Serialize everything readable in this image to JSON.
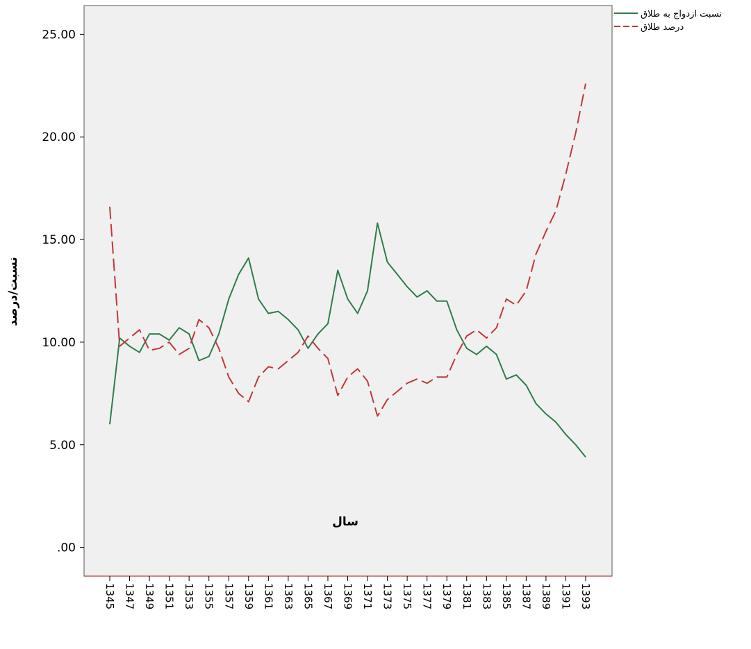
{
  "chart_data": {
    "type": "line",
    "title": "",
    "xlabel": "سال",
    "ylabel": "نسبت/درصد",
    "ylim": [
      -1.4,
      26.4
    ],
    "yticks": [
      0,
      5,
      10,
      15,
      20,
      25
    ],
    "ytick_labels": [
      ".00",
      "5.00",
      "10.00",
      "15.00",
      "20.00",
      "25.00"
    ],
    "x": [
      1345,
      1346,
      1347,
      1348,
      1349,
      1350,
      1351,
      1352,
      1353,
      1354,
      1355,
      1356,
      1357,
      1358,
      1359,
      1360,
      1361,
      1362,
      1363,
      1364,
      1365,
      1366,
      1367,
      1368,
      1369,
      1370,
      1371,
      1372,
      1373,
      1374,
      1375,
      1376,
      1377,
      1378,
      1379,
      1380,
      1381,
      1382,
      1383,
      1384,
      1385,
      1386,
      1387,
      1388,
      1389,
      1390,
      1391,
      1392,
      1393
    ],
    "xtick_labels": [
      "1345",
      "1347",
      "1349",
      "1351",
      "1353",
      "1355",
      "1357",
      "1359",
      "1361",
      "1363",
      "1365",
      "1367",
      "1369",
      "1371",
      "1373",
      "1375",
      "1377",
      "1379",
      "1381",
      "1383",
      "1385",
      "1387",
      "1389",
      "1391",
      "1393"
    ],
    "legend_position": "top-right, outside plot",
    "grid": false,
    "series": [
      {
        "name": "نسبت ازدواج به طلاق",
        "color": "#2e7d4a",
        "style": "solid",
        "values": [
          6.0,
          10.2,
          9.8,
          9.5,
          10.4,
          10.4,
          10.1,
          10.7,
          10.4,
          9.1,
          9.3,
          10.4,
          12.1,
          13.3,
          14.1,
          12.1,
          11.4,
          11.5,
          11.1,
          10.6,
          9.7,
          10.4,
          10.9,
          13.5,
          12.1,
          11.4,
          12.5,
          15.8,
          13.9,
          13.3,
          12.7,
          12.2,
          12.5,
          12.0,
          12.0,
          10.6,
          9.7,
          9.4,
          9.8,
          9.4,
          8.2,
          8.4,
          7.9,
          7.0,
          6.5,
          6.1,
          5.5,
          5.0,
          4.4
        ]
      },
      {
        "name": "درصد طلاق",
        "color": "#c0393b",
        "style": "dashed",
        "values": [
          16.6,
          9.8,
          10.2,
          10.6,
          9.6,
          9.7,
          10.0,
          9.4,
          9.7,
          11.1,
          10.7,
          9.7,
          8.3,
          7.5,
          7.1,
          8.3,
          8.8,
          8.7,
          9.1,
          9.5,
          10.3,
          9.7,
          9.2,
          7.4,
          8.3,
          8.7,
          8.1,
          6.4,
          7.2,
          7.6,
          8.0,
          8.2,
          8.0,
          8.3,
          8.3,
          9.4,
          10.3,
          10.6,
          10.2,
          10.7,
          12.1,
          11.8,
          12.5,
          14.3,
          15.4,
          16.4,
          18.2,
          20.2,
          22.6
        ]
      }
    ]
  }
}
